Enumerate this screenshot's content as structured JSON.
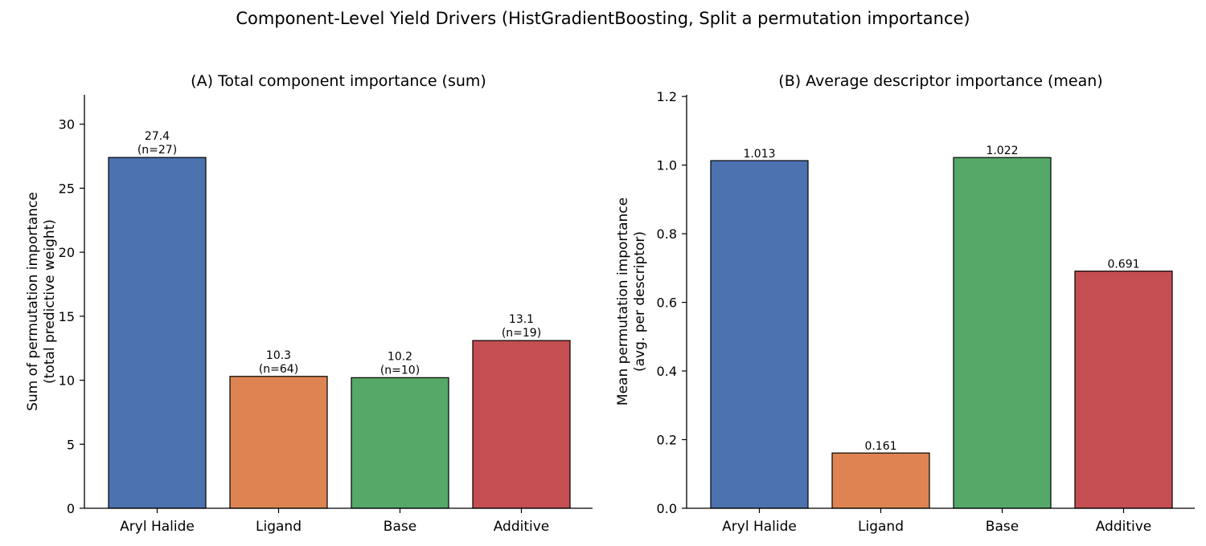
{
  "figure": {
    "title": "Component-Level Yield Drivers (HistGradientBoosting, Split a permutation importance)"
  },
  "colors": {
    "bars": [
      "#4c72b0",
      "#dd8452",
      "#55a868",
      "#c44e52"
    ],
    "edge": "#000000"
  },
  "chart_data": [
    {
      "type": "bar",
      "title": "(A) Total component importance (sum)",
      "ylabel_lines": [
        "Sum of permutation importance",
        "(total predictive weight)"
      ],
      "xlabel": "",
      "categories": [
        "Aryl Halide",
        "Ligand",
        "Base",
        "Additive"
      ],
      "values": [
        27.4,
        10.3,
        10.2,
        13.1
      ],
      "value_labels": [
        "27.4",
        "10.3",
        "10.2",
        "13.1"
      ],
      "count_labels": [
        "(n=27)",
        "(n=64)",
        "(n=10)",
        "(n=19)"
      ],
      "ylim": [
        0,
        32.3
      ],
      "yticks": [
        0,
        5,
        10,
        15,
        20,
        25,
        30
      ],
      "ytick_labels": [
        "0",
        "5",
        "10",
        "15",
        "20",
        "25",
        "30"
      ],
      "grid": false,
      "legend": "none"
    },
    {
      "type": "bar",
      "title": "(B) Average descriptor importance (mean)",
      "ylabel_lines": [
        "Mean permutation importance",
        "(avg. per descriptor)"
      ],
      "xlabel": "",
      "categories": [
        "Aryl Halide",
        "Ligand",
        "Base",
        "Additive"
      ],
      "values": [
        1.013,
        0.161,
        1.022,
        0.691
      ],
      "value_labels": [
        "1.013",
        "0.161",
        "1.022",
        "0.691"
      ],
      "ylim": [
        0,
        1.205
      ],
      "yticks": [
        0.0,
        0.2,
        0.4,
        0.6,
        0.8,
        1.0,
        1.2
      ],
      "ytick_labels": [
        "0.0",
        "0.2",
        "0.4",
        "0.6",
        "0.8",
        "1.0",
        "1.2"
      ],
      "grid": false,
      "legend": "none"
    }
  ]
}
